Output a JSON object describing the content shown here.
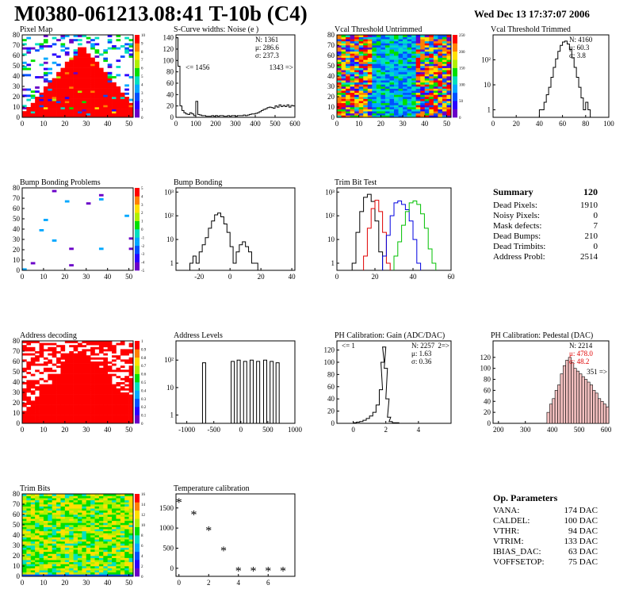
{
  "header": {
    "title": "M0380-061213.08:41 T-10b (C4)",
    "date": "Wed Dec 13 17:37:07 2006"
  },
  "summary": {
    "title": "Summary",
    "value": "120",
    "rows": [
      {
        "label": "Dead Pixels:",
        "value": "1910"
      },
      {
        "label": "Noisy Pixels:",
        "value": "0"
      },
      {
        "label": "Mask defects:",
        "value": "7"
      },
      {
        "label": "Dead Bumps:",
        "value": "210"
      },
      {
        "label": "Dead Trimbits:",
        "value": "0"
      },
      {
        "label": "Address Probl:",
        "value": "2514"
      }
    ]
  },
  "op_parameters": {
    "title": "Op. Parameters",
    "rows": [
      {
        "label": "VANA:",
        "value": "174 DAC"
      },
      {
        "label": "CALDEL:",
        "value": "100 DAC"
      },
      {
        "label": "VTHR:",
        "value": "94 DAC"
      },
      {
        "label": "VTRIM:",
        "value": "133 DAC"
      },
      {
        "label": "IBIAS_DAC:",
        "value": "63 DAC"
      },
      {
        "label": "VOFFSETOP:",
        "value": "75 DAC"
      }
    ]
  },
  "chart_data": [
    {
      "id": "pixel-map",
      "type": "heatmap",
      "title": "Pixel Map",
      "xlim": [
        0,
        52
      ],
      "ylim": [
        0,
        80
      ],
      "xticks": [
        0,
        10,
        20,
        30,
        40,
        50
      ],
      "yticks": [
        0,
        10,
        20,
        30,
        40,
        50,
        60,
        70,
        80
      ],
      "zlim": [
        0,
        10
      ],
      "zticks": [
        0,
        1,
        2,
        3,
        4,
        5,
        6,
        7,
        8,
        9,
        10
      ],
      "pattern": "hot triangle centred near x=28 (value 10), sparse low values elsewhere"
    },
    {
      "id": "scurve-widths",
      "type": "bar",
      "title": "S-Curve widths: Noise (e )",
      "xlim": [
        0,
        600
      ],
      "ylim": [
        0,
        145
      ],
      "xticks": [
        0,
        100,
        200,
        300,
        400,
        500,
        600
      ],
      "yticks": [
        0,
        20,
        40,
        60,
        80,
        100,
        120,
        140
      ],
      "stats": {
        "N": "1361",
        "mu": "286.6",
        "sigma": "237.3"
      },
      "annotations": [
        "<= 1456",
        "1343 =>"
      ],
      "x": [
        0,
        10,
        20,
        30,
        40,
        50,
        60,
        70,
        80,
        90,
        100,
        110,
        120,
        130,
        140,
        150,
        160,
        170,
        180,
        190,
        200,
        210,
        220,
        230,
        240,
        250,
        260,
        270,
        280,
        290,
        300,
        310,
        320,
        330,
        340,
        350,
        360,
        370,
        380,
        390,
        400,
        410,
        420,
        430,
        440,
        450,
        460,
        470,
        480,
        490,
        500,
        510,
        520,
        530,
        540,
        550,
        560,
        570,
        580,
        590
      ],
      "values": [
        140,
        90,
        20,
        12,
        8,
        6,
        5,
        8,
        6,
        3,
        28,
        5,
        4,
        3,
        3,
        2,
        2,
        2,
        3,
        2,
        3,
        2,
        3,
        3,
        2,
        2,
        3,
        2,
        3,
        3,
        2,
        3,
        3,
        3,
        4,
        3,
        4,
        5,
        6,
        6,
        7,
        8,
        10,
        12,
        14,
        15,
        17,
        18,
        17,
        16,
        20,
        18,
        22,
        19,
        21,
        19,
        22,
        18,
        21,
        20
      ]
    },
    {
      "id": "vcal-untrimmed",
      "type": "heatmap",
      "title": "Vcal Threshold Untrimmed",
      "xlim": [
        0,
        52
      ],
      "ylim": [
        0,
        80
      ],
      "xticks": [
        0,
        10,
        20,
        30,
        40,
        50
      ],
      "yticks": [
        0,
        10,
        20,
        30,
        40,
        50,
        60,
        70,
        80
      ],
      "zlim": [
        0,
        250
      ],
      "zticks": [
        0,
        50,
        100,
        150,
        200,
        250
      ],
      "pattern": "blue/green band centred near x=25, red speckle elsewhere"
    },
    {
      "id": "vcal-trimmed",
      "type": "line",
      "title": "Vcal Threshold Trimmed",
      "xlim": [
        0,
        100
      ],
      "ylim": [
        0.5,
        1000
      ],
      "log_y": true,
      "xticks": [
        0,
        20,
        40,
        60,
        80,
        100
      ],
      "yticks": [
        1,
        10,
        100
      ],
      "stats": {
        "N": "4160",
        "mu": "60.3",
        "sigma": "3.8"
      },
      "x": [
        40,
        42,
        44,
        46,
        48,
        50,
        52,
        54,
        56,
        58,
        60,
        62,
        64,
        66,
        68,
        70,
        72,
        74,
        76,
        78,
        80,
        82
      ],
      "values": [
        1,
        1,
        2,
        4,
        8,
        20,
        50,
        110,
        220,
        380,
        520,
        560,
        430,
        260,
        120,
        50,
        20,
        8,
        3,
        1,
        2,
        1
      ]
    },
    {
      "id": "bump-problems",
      "type": "heatmap",
      "title": "Bump Bonding Problems",
      "xlim": [
        0,
        52
      ],
      "ylim": [
        0,
        80
      ],
      "xticks": [
        0,
        10,
        20,
        30,
        40,
        50
      ],
      "yticks": [
        0,
        10,
        20,
        30,
        40,
        50,
        60,
        70,
        80
      ],
      "zlim": [
        -5,
        5
      ],
      "zticks": [
        -5,
        -4,
        -3,
        -2,
        -1,
        0,
        1,
        2,
        3,
        4,
        5
      ],
      "pattern": "sparse isolated pixels"
    },
    {
      "id": "bump-bonding",
      "type": "line",
      "title": "Bump Bonding",
      "xlim": [
        -35,
        42
      ],
      "ylim": [
        0.5,
        1500
      ],
      "log_y": true,
      "xticks": [
        -20,
        0,
        20,
        40
      ],
      "yticks": [
        1,
        10,
        100,
        1000
      ],
      "x": [
        -26,
        -24,
        -22,
        -20,
        -18,
        -16,
        -14,
        -12,
        -10,
        -8,
        -6,
        -4,
        -2,
        0,
        2,
        4,
        6,
        8,
        10,
        12,
        14,
        16
      ],
      "values": [
        1,
        2,
        1,
        3,
        6,
        12,
        30,
        60,
        110,
        130,
        90,
        45,
        20,
        5,
        1,
        3,
        6,
        8,
        5,
        3,
        1,
        1
      ]
    },
    {
      "id": "trim-bit-test",
      "type": "line",
      "title": "Trim Bit Test",
      "xlim": [
        0,
        60
      ],
      "ylim": [
        0.5,
        1500
      ],
      "log_y": true,
      "xticks": [
        0,
        20,
        40,
        60
      ],
      "yticks": [
        1,
        10,
        100,
        1000
      ],
      "series": [
        {
          "color": "#000000",
          "x": [
            8,
            10,
            12,
            14,
            16,
            18,
            20,
            22
          ],
          "values": [
            1,
            20,
            150,
            600,
            800,
            400,
            60,
            3
          ]
        },
        {
          "color": "#e00000",
          "x": [
            14,
            16,
            18,
            20,
            22,
            24,
            26
          ],
          "values": [
            2,
            30,
            200,
            450,
            150,
            20,
            1
          ]
        },
        {
          "color": "#0000e0",
          "x": [
            24,
            26,
            28,
            30,
            32,
            34,
            36,
            38,
            40,
            42
          ],
          "values": [
            2,
            15,
            100,
            350,
            420,
            300,
            180,
            60,
            10,
            1
          ]
        },
        {
          "color": "#00c000",
          "x": [
            30,
            32,
            34,
            36,
            38,
            40,
            42,
            44,
            46,
            48,
            50
          ],
          "values": [
            2,
            8,
            40,
            150,
            350,
            420,
            300,
            120,
            30,
            4,
            1
          ]
        }
      ]
    },
    {
      "id": "address-decoding",
      "type": "heatmap",
      "title": "Address decoding",
      "xlim": [
        0,
        52
      ],
      "ylim": [
        0,
        80
      ],
      "xticks": [
        0,
        10,
        20,
        30,
        40,
        50
      ],
      "yticks": [
        0,
        10,
        20,
        30,
        40,
        50,
        60,
        70,
        80
      ],
      "zlim": [
        0,
        1
      ],
      "zticks": [
        0,
        0.1,
        0.2,
        0.3,
        0.4,
        0.5,
        0.6,
        0.7,
        0.8,
        0.9,
        1
      ],
      "pattern": "mostly red with white speckle"
    },
    {
      "id": "address-levels",
      "type": "line",
      "title": "Address Levels",
      "xlim": [
        -1200,
        1000
      ],
      "ylim": [
        0.5,
        500
      ],
      "log_y": true,
      "xticks": [
        -1000,
        -500,
        0,
        500,
        1000
      ],
      "yticks": [
        1,
        10,
        100
      ],
      "x": [
        -680,
        -150,
        -40,
        80,
        200,
        320,
        450,
        570,
        680
      ],
      "values": [
        80,
        90,
        100,
        90,
        100,
        90,
        100,
        90,
        80
      ]
    },
    {
      "id": "ph-gain",
      "type": "bar",
      "title": "PH Calibration: Gain (ADC/DAC)",
      "xlim": [
        -1,
        6
      ],
      "ylim": [
        0,
        135
      ],
      "xticks": [
        0,
        2,
        4
      ],
      "yticks": [
        0,
        20,
        40,
        60,
        80,
        100,
        120
      ],
      "stats": {
        "N": "2257",
        "mu": "1.63",
        "sigma": "0.36"
      },
      "annotations": [
        "<= 1",
        "2=>"
      ],
      "x": [
        0,
        0.2,
        0.4,
        0.6,
        0.8,
        1.0,
        1.2,
        1.4,
        1.6,
        1.7,
        1.8,
        1.9,
        2.0,
        2.1,
        2.2,
        2.4,
        2.6
      ],
      "values": [
        1,
        2,
        3,
        5,
        8,
        12,
        18,
        30,
        55,
        100,
        125,
        90,
        40,
        10,
        3,
        1,
        1
      ]
    },
    {
      "id": "ph-pedestal",
      "type": "bar",
      "title": "PH Calibration: Pedestal (DAC)",
      "xlim": [
        180,
        610
      ],
      "ylim": [
        0,
        150
      ],
      "xticks": [
        200,
        300,
        400,
        500,
        600
      ],
      "yticks": [
        0,
        20,
        40,
        60,
        80,
        100,
        120
      ],
      "stats": {
        "N": "2214",
        "mu": "478.0",
        "sigma": "48.2"
      },
      "annotations": [
        "351 =>"
      ],
      "x": [
        380,
        390,
        400,
        410,
        420,
        430,
        440,
        450,
        460,
        470,
        480,
        490,
        500,
        510,
        520,
        530,
        540,
        550,
        560,
        570,
        580,
        590,
        600
      ],
      "values": [
        20,
        35,
        45,
        60,
        70,
        90,
        105,
        115,
        120,
        110,
        100,
        95,
        90,
        85,
        80,
        75,
        70,
        60,
        55,
        45,
        40,
        35,
        30
      ]
    },
    {
      "id": "trim-bits",
      "type": "heatmap",
      "title": "Trim Bits",
      "xlim": [
        0,
        52
      ],
      "ylim": [
        0,
        80
      ],
      "xticks": [
        0,
        10,
        20,
        30,
        40,
        50
      ],
      "yticks": [
        0,
        10,
        20,
        30,
        40,
        50,
        60,
        70,
        80
      ],
      "zlim": [
        0,
        16
      ],
      "zticks": [
        0,
        2,
        4,
        6,
        8,
        10,
        12,
        14,
        16
      ],
      "pattern": "noisy green/yellow field, blue near y=0"
    },
    {
      "id": "temperature-calibration",
      "type": "scatter",
      "title": "Temperature calibration",
      "xlim": [
        -0.2,
        7.8
      ],
      "ylim": [
        -200,
        1850
      ],
      "xticks": [
        0,
        2,
        4,
        6
      ],
      "yticks": [
        0,
        500,
        1000,
        1500
      ],
      "x": [
        0,
        1,
        2,
        3,
        4,
        5,
        6,
        7
      ],
      "values": [
        1650,
        1350,
        950,
        450,
        -50,
        -50,
        -50,
        -50
      ]
    }
  ]
}
